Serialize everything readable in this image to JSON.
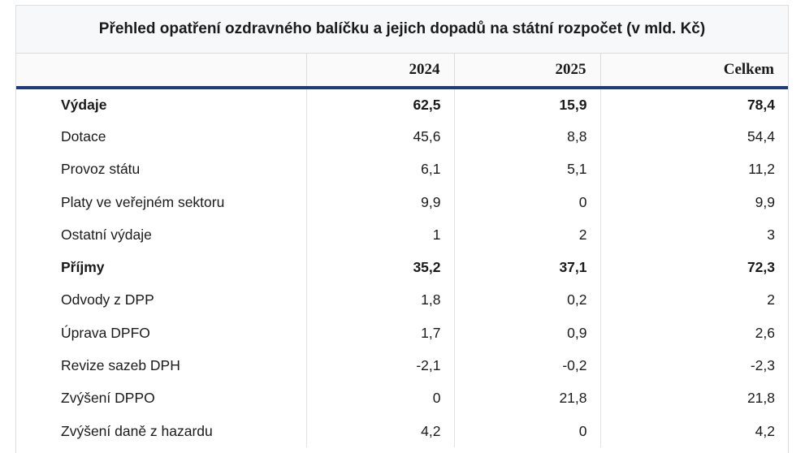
{
  "table": {
    "title": "Přehled opatření ozdravného balíčku a jejich dopadů na státní rozpočet (v mld. Kč)",
    "columns": [
      "",
      "2024",
      "2025",
      "Celkem"
    ],
    "rows": [
      {
        "label": "Výdaje",
        "v2024": "62,5",
        "v2025": "15,9",
        "total": "78,4",
        "bold": true
      },
      {
        "label": "Dotace",
        "v2024": "45,6",
        "v2025": "8,8",
        "total": "54,4",
        "bold": false
      },
      {
        "label": "Provoz státu",
        "v2024": "6,1",
        "v2025": "5,1",
        "total": "11,2",
        "bold": false
      },
      {
        "label": "Platy ve veřejném sektoru",
        "v2024": "9,9",
        "v2025": "0",
        "total": "9,9",
        "bold": false
      },
      {
        "label": "Ostatní výdaje",
        "v2024": "1",
        "v2025": "2",
        "total": "3",
        "bold": false
      },
      {
        "label": "Příjmy",
        "v2024": "35,2",
        "v2025": "37,1",
        "total": "72,3",
        "bold": true
      },
      {
        "label": "Odvody z DPP",
        "v2024": "1,8",
        "v2025": "0,2",
        "total": "2",
        "bold": false
      },
      {
        "label": "Úprava DPFO",
        "v2024": "1,7",
        "v2025": "0,9",
        "total": "2,6",
        "bold": false
      },
      {
        "label": "Revize sazeb DPH",
        "v2024": "-2,1",
        "v2025": "-0,2",
        "total": "-2,3",
        "bold": false
      },
      {
        "label": "Zvýšení DPPO",
        "v2024": "0",
        "v2025": "21,8",
        "total": "21,8",
        "bold": false
      },
      {
        "label": "Zvýšení daně z hazardu",
        "v2024": "4,2",
        "v2025": "0",
        "total": "4,2",
        "bold": false
      }
    ]
  },
  "colors": {
    "header_rule": "#1f3a7a",
    "title_bg": "#f7f8fa"
  }
}
